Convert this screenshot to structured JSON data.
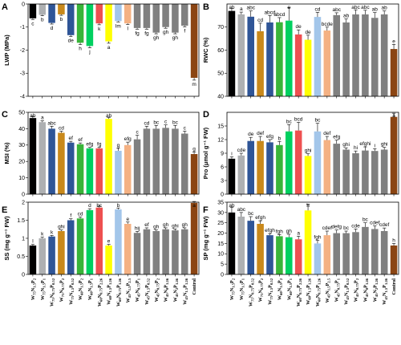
{
  "colors": [
    "#000000",
    "#aeb0b2",
    "#2f5597",
    "#c9891b",
    "#2f5597",
    "#39b439",
    "#00d060",
    "#ee5050",
    "#ffff00",
    "#a3c6ea",
    "#f4b183",
    "#808080",
    "#808080",
    "#808080",
    "#808080",
    "#808080",
    "#808080",
    "#8b4513"
  ],
  "x_categories": [
    {
      "main": "W",
      "s1": "75",
      "n": "N",
      "s2": "1.5",
      "p": "P",
      "s3": "2"
    },
    {
      "main": "W",
      "s1": "75",
      "n": "N",
      "s2": "1.5",
      "p": "P",
      "s3": "1"
    },
    {
      "main": "W",
      "s1": "75",
      "n": "N",
      "s2": "0.75",
      "p": "P",
      "s3": "0.52"
    },
    {
      "main": "W",
      "s1": "75",
      "n": "N",
      "s2": "0.75",
      "p": "P",
      "s3": "2"
    },
    {
      "main": "W",
      "s1": "75",
      "n": "N",
      "s2": "1.5",
      "p": "P",
      "s3": "0.52"
    },
    {
      "main": "W",
      "s1": "60",
      "n": "N",
      "s2": "1.5",
      "p": "P",
      "s3": "2"
    },
    {
      "main": "W",
      "s1": "60",
      "n": "N",
      "s2": "1.5",
      "p": "P",
      "s3": "1"
    },
    {
      "main": "W",
      "s1": "60",
      "n": "N",
      "s2": "0.75",
      "p": "P",
      "s3": "2.26"
    },
    {
      "main": "W",
      "s1": "60",
      "n": "N",
      "s2": "1.5",
      "p": "P",
      "s3": "1.26"
    },
    {
      "main": "W",
      "s1": "60",
      "n": "N",
      "s2": "0.75",
      "p": "P",
      "s3": "1.26"
    },
    {
      "main": "W",
      "s1": "45",
      "n": "N",
      "s2": "1.5",
      "p": "P",
      "s3": "2.5"
    },
    {
      "main": "W",
      "s1": "45",
      "n": "N",
      "s2": "0.75",
      "p": "P",
      "s3": "1"
    },
    {
      "main": "W",
      "s1": "45",
      "n": "N",
      "s2": "1.5",
      "p": "P",
      "s3": "0.52"
    },
    {
      "main": "W",
      "s1": "45",
      "n": "N",
      "s2": "0.75",
      "p": "P",
      "s3": "2"
    },
    {
      "main": "W",
      "s1": "45",
      "n": "N",
      "s2": "0",
      "p": "P",
      "s3": "1.26"
    },
    {
      "main": "W",
      "s1": "45",
      "n": "N",
      "s2": "2",
      "p": "P",
      "s3": "1.26"
    },
    {
      "main": "W",
      "s1": "45",
      "n": "N",
      "s2": "1.5",
      "p": "P",
      "s3": "1.26"
    },
    {
      "main": "Control",
      "s1": "",
      "n": "",
      "s2": "",
      "p": "",
      "s3": ""
    }
  ],
  "chart_data": [
    {
      "panel": "A",
      "type": "bar",
      "ylabel": "LWP (MPa)",
      "ylim": [
        -4,
        0
      ],
      "yticks": [
        -4,
        -3,
        -2,
        -1,
        0
      ],
      "values": [
        -0.62,
        -0.47,
        -0.82,
        -0.45,
        -1.35,
        -1.68,
        -1.82,
        -0.84,
        -1.62,
        -0.74,
        -0.84,
        -1.04,
        -1.04,
        -1.24,
        -1.0,
        -1.24,
        -0.94,
        -3.2
      ],
      "errors": [
        0.05,
        0.04,
        0.05,
        0.04,
        0.06,
        0.08,
        0.08,
        0.06,
        0.08,
        0.04,
        0.05,
        0.05,
        0.05,
        0.05,
        0.05,
        0.05,
        0.05,
        0.1
      ],
      "letters": [
        "c",
        "b",
        "d",
        "b",
        "de",
        "h",
        "j",
        "k",
        "a",
        "lm",
        "l",
        "fg",
        "fg",
        "gh",
        "gh",
        "gh",
        "f",
        "m"
      ]
    },
    {
      "panel": "B",
      "type": "bar",
      "ylabel": "RWC (%)",
      "ylim": [
        40,
        80
      ],
      "yticks": [
        40,
        50,
        60,
        70
      ],
      "values": [
        77,
        75.5,
        74.5,
        68.2,
        72,
        72.1,
        72.8,
        66.8,
        64.5,
        74.4,
        68.5,
        75.2,
        72,
        75.5,
        75.5,
        74,
        75.5,
        60.5
      ],
      "errors": [
        1.0,
        1.0,
        2.5,
        3.5,
        3.0,
        2.0,
        5.5,
        2.0,
        2.0,
        2.0,
        1.5,
        1.0,
        1.5,
        2.0,
        1.8,
        2.3,
        1.5,
        2.0
      ],
      "letters": [
        "ab",
        "a",
        "abc",
        "cd",
        "abcd",
        "abcd",
        "e",
        "de",
        "de",
        "cd",
        "bcde",
        "abc",
        "ab",
        "abc",
        "abc",
        "ab",
        "ab",
        "e"
      ]
    },
    {
      "panel": "C",
      "type": "bar",
      "ylabel": "MSI (%)",
      "ylim": [
        0,
        50
      ],
      "yticks": [
        0,
        10,
        20,
        30,
        40,
        50
      ],
      "values": [
        46.5,
        44,
        40,
        37.5,
        31.5,
        30.5,
        28,
        28,
        46,
        26.5,
        30,
        33.5,
        40,
        40,
        40.5,
        40,
        37,
        24.5
      ],
      "errors": [
        1.0,
        0.8,
        1.5,
        1.0,
        0.8,
        0.8,
        0.6,
        0.6,
        0.8,
        1.5,
        1.8,
        2.5,
        1.5,
        2.0,
        1.8,
        2.0,
        1.5,
        1.2
      ],
      "letters": [
        "ab",
        "a",
        "abc",
        "cd",
        "ef",
        "ef",
        "efg",
        "fg",
        "ab",
        "g",
        "efg",
        "c",
        "cd",
        "bc",
        "c",
        "bc",
        "c",
        "g"
      ]
    },
    {
      "panel": "D",
      "type": "bar",
      "ylabel": "Pro (μmol g⁻¹ FW)",
      "ylim": [
        0,
        18
      ],
      "yticks": [
        0,
        3,
        6,
        9,
        12,
        15
      ],
      "values": [
        7.8,
        8.5,
        11.7,
        11.7,
        11.4,
        10.8,
        13.8,
        14.0,
        8.4,
        13.8,
        11.9,
        11.1,
        9.8,
        9.0,
        9.6,
        9.5,
        9.8,
        17.0
      ],
      "errors": [
        0.4,
        0.5,
        0.8,
        1.0,
        0.6,
        0.8,
        1.5,
        1.8,
        0.5,
        1.8,
        0.8,
        0.8,
        0.4,
        0.5,
        0.8,
        0.5,
        0.5,
        0.8
      ],
      "letters": [
        "i",
        "cde",
        "de",
        "def",
        "efg",
        "b",
        "bc",
        "bcd",
        "ghi",
        "bc",
        "def",
        "efg",
        "ghi",
        "hi",
        "efghi",
        "i",
        "ghi",
        "a"
      ]
    },
    {
      "panel": "E",
      "type": "bar",
      "ylabel": "SS (mg g⁻¹ FW)",
      "ylim": [
        0,
        2.0
      ],
      "yticks": [
        0,
        0.5,
        1.0,
        1.5,
        2.0
      ],
      "values": [
        0.8,
        1.0,
        1.05,
        1.2,
        1.5,
        1.55,
        1.78,
        1.85,
        0.8,
        1.8,
        1.4,
        1.15,
        1.25,
        1.2,
        1.25,
        1.22,
        1.25,
        1.98
      ],
      "errors": [
        0.03,
        0.03,
        0.03,
        0.03,
        0.04,
        0.04,
        0.04,
        0.04,
        0.03,
        0.04,
        0.05,
        0.04,
        0.04,
        0.03,
        0.04,
        0.04,
        0.04,
        0.04
      ],
      "letters": [
        "l",
        "k",
        "k",
        "ghi",
        "f",
        "cd",
        "d",
        "bc",
        "e",
        "b",
        "e",
        "hij",
        "ef",
        "gh",
        "gh",
        "ghi",
        "gh",
        "a"
      ]
    },
    {
      "panel": "F",
      "type": "bar",
      "ylabel": "SP (mg g⁻¹ FW)",
      "ylim": [
        0,
        35
      ],
      "yticks": [
        0,
        5,
        10,
        15,
        20,
        25,
        30,
        35
      ],
      "values": [
        30,
        28,
        26,
        24.5,
        19,
        18.5,
        18,
        17,
        31,
        15,
        19,
        20,
        20,
        20.5,
        23,
        22,
        21,
        14
      ],
      "errors": [
        2.5,
        2.0,
        2.0,
        1.5,
        0.8,
        0.8,
        1.5,
        1.5,
        3.0,
        1.5,
        2.0,
        1.5,
        1.0,
        1.5,
        2.0,
        1.5,
        1.5,
        1.0
      ],
      "letters": [
        "ab",
        "abc",
        "bc",
        "efgh",
        "efgh",
        "fgh",
        "gh",
        "a",
        "h",
        "fgh",
        "cdef",
        "defg",
        "bc",
        "cde",
        "bc",
        "cdef",
        "cdef",
        "h"
      ]
    }
  ]
}
